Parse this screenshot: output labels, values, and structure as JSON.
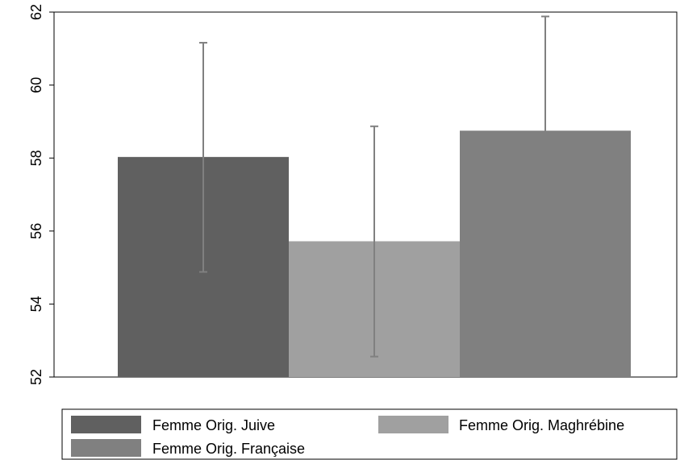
{
  "chart_data": {
    "type": "bar",
    "categories": [
      "Femme Orig. Juive",
      "Femme Orig. Maghrébine",
      "Femme Orig. Française"
    ],
    "values": [
      58.03,
      55.72,
      58.75
    ],
    "error_low": [
      54.88,
      52.56,
      55.62
    ],
    "error_high": [
      61.16,
      58.87,
      61.88
    ],
    "ylim": [
      52,
      62
    ],
    "yticks": [
      "52",
      "54",
      "56",
      "58",
      "60",
      "62"
    ],
    "ytick_values": [
      52,
      54,
      56,
      58,
      60,
      62
    ],
    "grid": false,
    "legend_position": "bottom",
    "legend": [
      {
        "label": "Femme Orig. Juive",
        "color": "#606060"
      },
      {
        "label": "Femme Orig. Maghrébine",
        "color": "#a0a0a0"
      },
      {
        "label": "Femme Orig. Française",
        "color": "#808080"
      }
    ],
    "colors": [
      "#606060",
      "#a0a0a0",
      "#808080"
    ],
    "error_bar_color": "#808080",
    "title": "",
    "xlabel": "",
    "ylabel": ""
  }
}
